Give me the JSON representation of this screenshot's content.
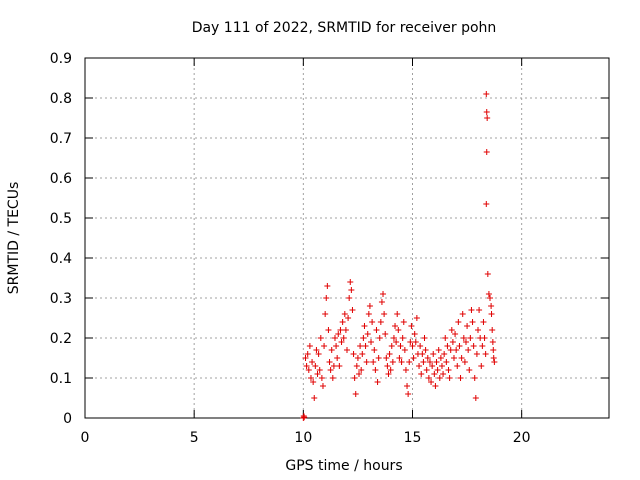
{
  "chart_data": {
    "type": "scatter",
    "title": "Day 111 of 2022, SRMTID for receiver pohn",
    "xlabel": "GPS time / hours",
    "ylabel": "SRMTID / TECUs",
    "xlim": [
      0,
      24
    ],
    "ylim": [
      0,
      0.9
    ],
    "x_ticks": [
      0,
      5,
      10,
      15,
      20
    ],
    "y_ticks": [
      0,
      0.1,
      0.2,
      0.3,
      0.4,
      0.5,
      0.6,
      0.7,
      0.8,
      0.9
    ],
    "y_tick_labels": [
      "0",
      "0.1",
      "0.2",
      "0.3",
      "0.4",
      "0.5",
      "0.6",
      "0.7",
      "0.8",
      "0.9"
    ],
    "grid": true,
    "marker": "+",
    "series": [
      {
        "color": "#e00000",
        "points": [
          [
            10.0,
            0.0
          ],
          [
            10.02,
            0.005
          ],
          [
            10.04,
            0.002
          ],
          [
            10.1,
            0.15
          ],
          [
            10.15,
            0.13
          ],
          [
            10.2,
            0.16
          ],
          [
            10.25,
            0.12
          ],
          [
            10.3,
            0.18
          ],
          [
            10.35,
            0.1
          ],
          [
            10.4,
            0.14
          ],
          [
            10.45,
            0.09
          ],
          [
            10.5,
            0.05
          ],
          [
            10.55,
            0.13
          ],
          [
            10.6,
            0.17
          ],
          [
            10.65,
            0.11
          ],
          [
            10.7,
            0.16
          ],
          [
            10.75,
            0.12
          ],
          [
            10.8,
            0.2
          ],
          [
            10.85,
            0.1
          ],
          [
            10.9,
            0.08
          ],
          [
            10.95,
            0.18
          ],
          [
            11.0,
            0.26
          ],
          [
            11.05,
            0.3
          ],
          [
            11.1,
            0.33
          ],
          [
            11.15,
            0.22
          ],
          [
            11.2,
            0.14
          ],
          [
            11.25,
            0.12
          ],
          [
            11.3,
            0.17
          ],
          [
            11.35,
            0.1
          ],
          [
            11.4,
            0.13
          ],
          [
            11.45,
            0.2
          ],
          [
            11.5,
            0.18
          ],
          [
            11.55,
            0.15
          ],
          [
            11.6,
            0.21
          ],
          [
            11.65,
            0.13
          ],
          [
            11.7,
            0.22
          ],
          [
            11.75,
            0.19
          ],
          [
            11.8,
            0.24
          ],
          [
            11.85,
            0.2
          ],
          [
            11.9,
            0.26
          ],
          [
            11.95,
            0.22
          ],
          [
            12.0,
            0.17
          ],
          [
            12.05,
            0.25
          ],
          [
            12.1,
            0.3
          ],
          [
            12.15,
            0.34
          ],
          [
            12.2,
            0.32
          ],
          [
            12.25,
            0.27
          ],
          [
            12.3,
            0.16
          ],
          [
            12.35,
            0.1
          ],
          [
            12.4,
            0.06
          ],
          [
            12.45,
            0.13
          ],
          [
            12.5,
            0.15
          ],
          [
            12.55,
            0.11
          ],
          [
            12.6,
            0.18
          ],
          [
            12.65,
            0.12
          ],
          [
            12.7,
            0.16
          ],
          [
            12.75,
            0.2
          ],
          [
            12.8,
            0.23
          ],
          [
            12.85,
            0.18
          ],
          [
            12.9,
            0.14
          ],
          [
            12.95,
            0.21
          ],
          [
            13.0,
            0.26
          ],
          [
            13.05,
            0.28
          ],
          [
            13.1,
            0.19
          ],
          [
            13.15,
            0.24
          ],
          [
            13.2,
            0.14
          ],
          [
            13.25,
            0.17
          ],
          [
            13.3,
            0.12
          ],
          [
            13.35,
            0.22
          ],
          [
            13.4,
            0.09
          ],
          [
            13.45,
            0.15
          ],
          [
            13.5,
            0.2
          ],
          [
            13.55,
            0.24
          ],
          [
            13.6,
            0.29
          ],
          [
            13.65,
            0.31
          ],
          [
            13.7,
            0.26
          ],
          [
            13.75,
            0.21
          ],
          [
            13.8,
            0.15
          ],
          [
            13.85,
            0.13
          ],
          [
            13.9,
            0.11
          ],
          [
            13.95,
            0.16
          ],
          [
            14.0,
            0.12
          ],
          [
            14.05,
            0.18
          ],
          [
            14.1,
            0.14
          ],
          [
            14.15,
            0.2
          ],
          [
            14.2,
            0.23
          ],
          [
            14.25,
            0.19
          ],
          [
            14.3,
            0.26
          ],
          [
            14.35,
            0.22
          ],
          [
            14.4,
            0.15
          ],
          [
            14.45,
            0.18
          ],
          [
            14.5,
            0.14
          ],
          [
            14.55,
            0.2
          ],
          [
            14.6,
            0.24
          ],
          [
            14.65,
            0.17
          ],
          [
            14.7,
            0.12
          ],
          [
            14.75,
            0.08
          ],
          [
            14.8,
            0.06
          ],
          [
            14.85,
            0.14
          ],
          [
            14.9,
            0.19
          ],
          [
            14.95,
            0.23
          ],
          [
            15.0,
            0.18
          ],
          [
            15.05,
            0.15
          ],
          [
            15.1,
            0.21
          ],
          [
            15.15,
            0.19
          ],
          [
            15.2,
            0.25
          ],
          [
            15.25,
            0.16
          ],
          [
            15.3,
            0.13
          ],
          [
            15.35,
            0.18
          ],
          [
            15.4,
            0.11
          ],
          [
            15.45,
            0.16
          ],
          [
            15.5,
            0.14
          ],
          [
            15.55,
            0.2
          ],
          [
            15.6,
            0.17
          ],
          [
            15.65,
            0.12
          ],
          [
            15.7,
            0.15
          ],
          [
            15.75,
            0.1
          ],
          [
            15.8,
            0.14
          ],
          [
            15.85,
            0.09
          ],
          [
            15.9,
            0.13
          ],
          [
            15.95,
            0.16
          ],
          [
            16.0,
            0.11
          ],
          [
            16.05,
            0.08
          ],
          [
            16.1,
            0.14
          ],
          [
            16.15,
            0.12
          ],
          [
            16.2,
            0.17
          ],
          [
            16.25,
            0.1
          ],
          [
            16.3,
            0.15
          ],
          [
            16.35,
            0.13
          ],
          [
            16.4,
            0.11
          ],
          [
            16.45,
            0.16
          ],
          [
            16.5,
            0.2
          ],
          [
            16.55,
            0.14
          ],
          [
            16.6,
            0.18
          ],
          [
            16.65,
            0.12
          ],
          [
            16.7,
            0.1
          ],
          [
            16.75,
            0.17
          ],
          [
            16.8,
            0.22
          ],
          [
            16.85,
            0.19
          ],
          [
            16.9,
            0.15
          ],
          [
            16.95,
            0.21
          ],
          [
            17.0,
            0.17
          ],
          [
            17.05,
            0.13
          ],
          [
            17.1,
            0.24
          ],
          [
            17.15,
            0.18
          ],
          [
            17.2,
            0.1
          ],
          [
            17.25,
            0.15
          ],
          [
            17.3,
            0.26
          ],
          [
            17.35,
            0.2
          ],
          [
            17.4,
            0.14
          ],
          [
            17.45,
            0.19
          ],
          [
            17.5,
            0.23
          ],
          [
            17.55,
            0.17
          ],
          [
            17.6,
            0.12
          ],
          [
            17.65,
            0.2
          ],
          [
            17.7,
            0.27
          ],
          [
            17.75,
            0.24
          ],
          [
            17.8,
            0.18
          ],
          [
            17.85,
            0.1
          ],
          [
            17.9,
            0.05
          ],
          [
            17.95,
            0.16
          ],
          [
            18.0,
            0.22
          ],
          [
            18.05,
            0.27
          ],
          [
            18.1,
            0.2
          ],
          [
            18.15,
            0.13
          ],
          [
            18.2,
            0.18
          ],
          [
            18.25,
            0.24
          ],
          [
            18.3,
            0.2
          ],
          [
            18.35,
            0.16
          ],
          [
            18.38,
            0.81
          ],
          [
            18.4,
            0.765
          ],
          [
            18.42,
            0.75
          ],
          [
            18.4,
            0.665
          ],
          [
            18.38,
            0.535
          ],
          [
            18.45,
            0.36
          ],
          [
            18.5,
            0.31
          ],
          [
            18.55,
            0.3
          ],
          [
            18.6,
            0.28
          ],
          [
            18.62,
            0.26
          ],
          [
            18.65,
            0.22
          ],
          [
            18.68,
            0.19
          ],
          [
            18.7,
            0.17
          ],
          [
            18.72,
            0.15
          ],
          [
            18.75,
            0.14
          ]
        ]
      }
    ]
  }
}
